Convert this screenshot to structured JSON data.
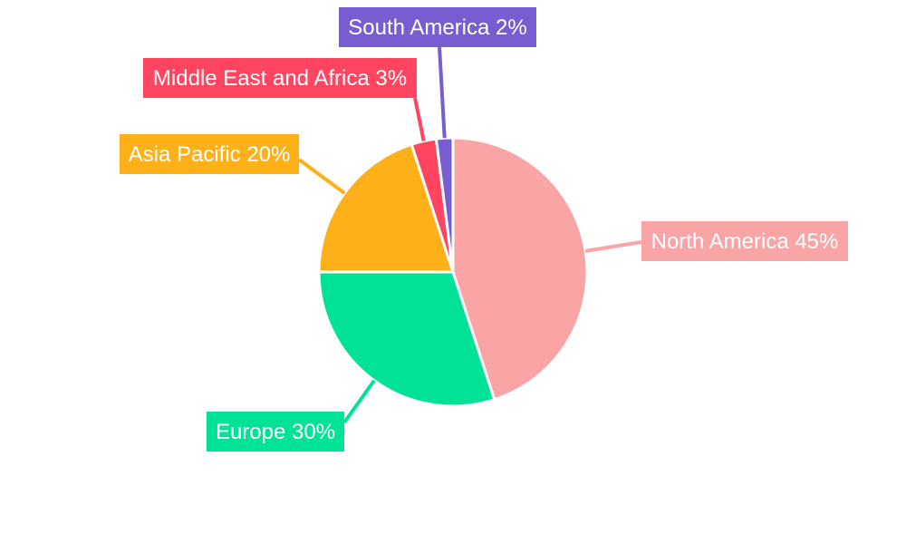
{
  "chart_data": {
    "type": "pie",
    "categories": [
      "North America",
      "Europe",
      "Asia Pacific",
      "Middle East and Africa",
      "South America"
    ],
    "values": [
      45,
      30,
      20,
      3,
      2
    ],
    "labels": [
      "North America 45%",
      "Europe 30%",
      "Asia Pacific 20%",
      "Middle East and Africa 3%",
      "South America 2%"
    ],
    "colors": [
      "#F9A5A6",
      "#00E396",
      "#FEB019",
      "#FF4560",
      "#775DD0"
    ],
    "start_angle": "12 o'clock",
    "direction": "clockwise",
    "legend": "none"
  }
}
